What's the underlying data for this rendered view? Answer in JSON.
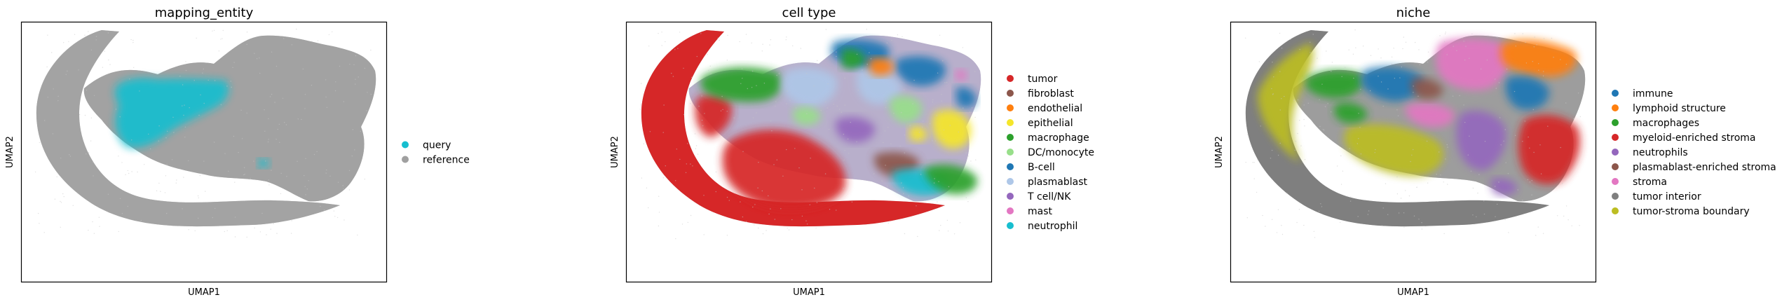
{
  "chart_data": [
    {
      "type": "scatter",
      "title": "mapping_entity",
      "xlabel": "UMAP1",
      "ylabel": "UMAP2",
      "grid": false,
      "ticks": false,
      "legend_placement": "right",
      "series": [
        {
          "name": "query",
          "color": "#17becf"
        },
        {
          "name": "reference",
          "color": "#a0a0a0"
        }
      ]
    },
    {
      "type": "scatter",
      "title": "cell type",
      "xlabel": "UMAP1",
      "ylabel": "UMAP2",
      "grid": false,
      "ticks": false,
      "legend_placement": "right",
      "series": [
        {
          "name": "tumor",
          "color": "#d62728"
        },
        {
          "name": "fibroblast",
          "color": "#8c564b"
        },
        {
          "name": "endothelial",
          "color": "#ff7f0e"
        },
        {
          "name": "epithelial",
          "color": "#f5e62a"
        },
        {
          "name": "macrophage",
          "color": "#2ca02c"
        },
        {
          "name": "DC/monocyte",
          "color": "#98df8a"
        },
        {
          "name": "B-cell",
          "color": "#1f77b4"
        },
        {
          "name": "plasmablast",
          "color": "#aec7e8"
        },
        {
          "name": "T cell/NK",
          "color": "#9467bd"
        },
        {
          "name": "mast",
          "color": "#e377c2"
        },
        {
          "name": "neutrophil",
          "color": "#17becf"
        }
      ]
    },
    {
      "type": "scatter",
      "title": "niche",
      "xlabel": "UMAP1",
      "ylabel": "UMAP2",
      "grid": false,
      "ticks": false,
      "legend_placement": "right",
      "series": [
        {
          "name": "immune",
          "color": "#1f77b4"
        },
        {
          "name": "lymphoid structure",
          "color": "#ff7f0e"
        },
        {
          "name": "macrophages",
          "color": "#2ca02c"
        },
        {
          "name": "myeloid-enriched stroma",
          "color": "#d62728"
        },
        {
          "name": "neutrophils",
          "color": "#9467bd"
        },
        {
          "name": "plasmablast-enriched stroma",
          "color": "#8c564b"
        },
        {
          "name": "stroma",
          "color": "#e377c2"
        },
        {
          "name": "tumor interior",
          "color": "#7f7f7f"
        },
        {
          "name": "tumor-stroma boundary",
          "color": "#bcbd22"
        }
      ]
    }
  ]
}
